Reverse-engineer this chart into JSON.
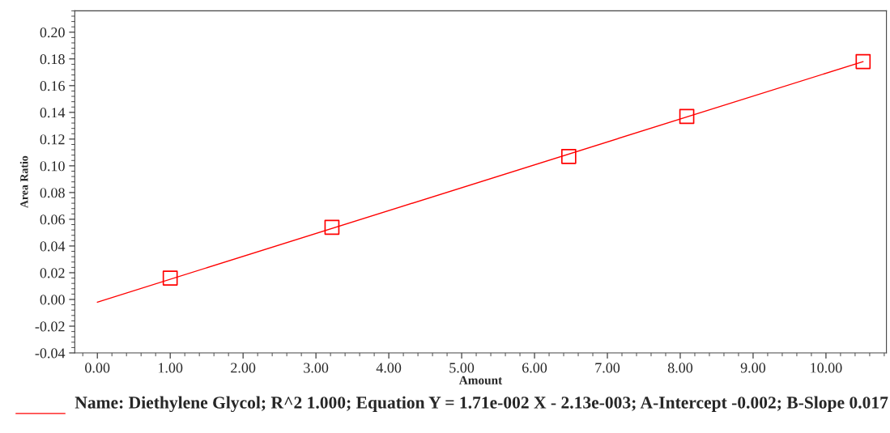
{
  "chart_data": {
    "type": "scatter",
    "xlabel": "Amount",
    "ylabel": "Area Ratio",
    "xlim": [
      -0.31,
      10.83
    ],
    "ylim": [
      -0.04,
      0.216
    ],
    "xticks": [
      {
        "value": 0,
        "label": "0.00"
      },
      {
        "value": 1,
        "label": "1.00"
      },
      {
        "value": 2,
        "label": "2.00"
      },
      {
        "value": 3,
        "label": "3.00"
      },
      {
        "value": 4,
        "label": "4.00"
      },
      {
        "value": 5,
        "label": "5.00"
      },
      {
        "value": 6,
        "label": "6.00"
      },
      {
        "value": 7,
        "label": "7.00"
      },
      {
        "value": 8,
        "label": "8.00"
      },
      {
        "value": 9,
        "label": "9.00"
      },
      {
        "value": 10,
        "label": "10.00"
      }
    ],
    "yticks": [
      {
        "value": -0.04,
        "label": "-0.04"
      },
      {
        "value": -0.02,
        "label": "-0.02"
      },
      {
        "value": 0,
        "label": "0.00"
      },
      {
        "value": 0.02,
        "label": "0.02"
      },
      {
        "value": 0.04,
        "label": "0.04"
      },
      {
        "value": 0.06,
        "label": "0.06"
      },
      {
        "value": 0.08,
        "label": "0.08"
      },
      {
        "value": 0.1,
        "label": "0.10"
      },
      {
        "value": 0.12,
        "label": "0.12"
      },
      {
        "value": 0.14,
        "label": "0.14"
      },
      {
        "value": 0.16,
        "label": "0.16"
      },
      {
        "value": 0.18,
        "label": "0.18"
      },
      {
        "value": 0.2,
        "label": "0.20"
      }
    ],
    "grid": false,
    "legend": "bottom",
    "series": [
      {
        "type": "line",
        "name": "Name: Diethylene Glycol; R^2 1.000; Equation Y = 1.71e-002 X - 2.13e-003; A-Intercept -0.002; B-Slope 0.017",
        "color": "#ff0000",
        "x": [
          0,
          10.51
        ],
        "values": [
          -0.002,
          0.178
        ],
        "marker": "none"
      },
      {
        "color": "#ff0000",
        "x": [
          1.0,
          3.22,
          6.47,
          8.09,
          10.51
        ],
        "values": [
          0.016,
          0.054,
          0.107,
          0.137,
          0.178
        ],
        "marker": "square"
      }
    ]
  }
}
